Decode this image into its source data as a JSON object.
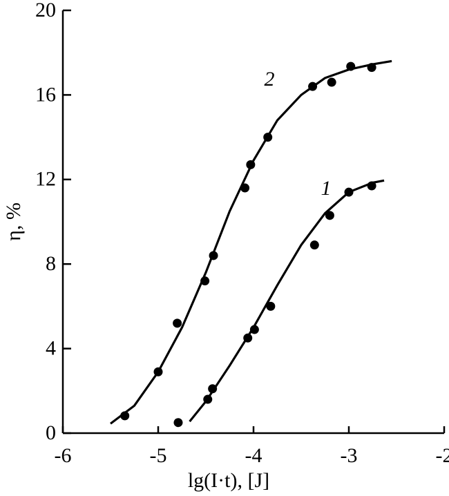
{
  "chart_data": {
    "type": "scatter",
    "xlabel": "lg(I·t), [J]",
    "ylabel": "η, %",
    "xlim": [
      -6,
      -2
    ],
    "xticks": [
      -6,
      -5,
      -4,
      -3,
      -2
    ],
    "ylim": [
      0,
      20
    ],
    "yticks": [
      0,
      4,
      8,
      12,
      16,
      20
    ],
    "color": "#000000",
    "series": [
      {
        "name": "1",
        "x": [
          -4.79,
          -4.48,
          -4.43,
          -4.06,
          -3.99,
          -3.82,
          -3.36,
          -3.2,
          -3.0,
          -2.76
        ],
        "values": [
          0.5,
          1.6,
          2.1,
          4.5,
          4.9,
          6.0,
          8.9,
          10.3,
          11.4,
          11.7
        ],
        "curve_x": [
          -4.67,
          -4.5,
          -4.25,
          -4.0,
          -3.75,
          -3.5,
          -3.25,
          -3.0,
          -2.75,
          -2.63
        ],
        "curve_y": [
          0.55,
          1.5,
          3.2,
          5.0,
          7.0,
          8.9,
          10.4,
          11.4,
          11.85,
          11.95
        ]
      },
      {
        "name": "2",
        "x": [
          -5.35,
          -5.0,
          -4.8,
          -4.51,
          -4.42,
          -4.09,
          -4.03,
          -3.85,
          -3.38,
          -3.18,
          -2.98,
          -2.76
        ],
        "values": [
          0.82,
          2.9,
          5.2,
          7.2,
          8.4,
          11.6,
          12.7,
          14.0,
          16.4,
          16.6,
          17.35,
          17.3
        ],
        "curve_x": [
          -5.5,
          -5.25,
          -5.0,
          -4.75,
          -4.5,
          -4.25,
          -4.0,
          -3.75,
          -3.5,
          -3.25,
          -3.0,
          -2.75,
          -2.55
        ],
        "curve_y": [
          0.45,
          1.3,
          2.9,
          5.0,
          7.6,
          10.5,
          12.9,
          14.8,
          16.0,
          16.8,
          17.2,
          17.45,
          17.6
        ]
      }
    ]
  }
}
